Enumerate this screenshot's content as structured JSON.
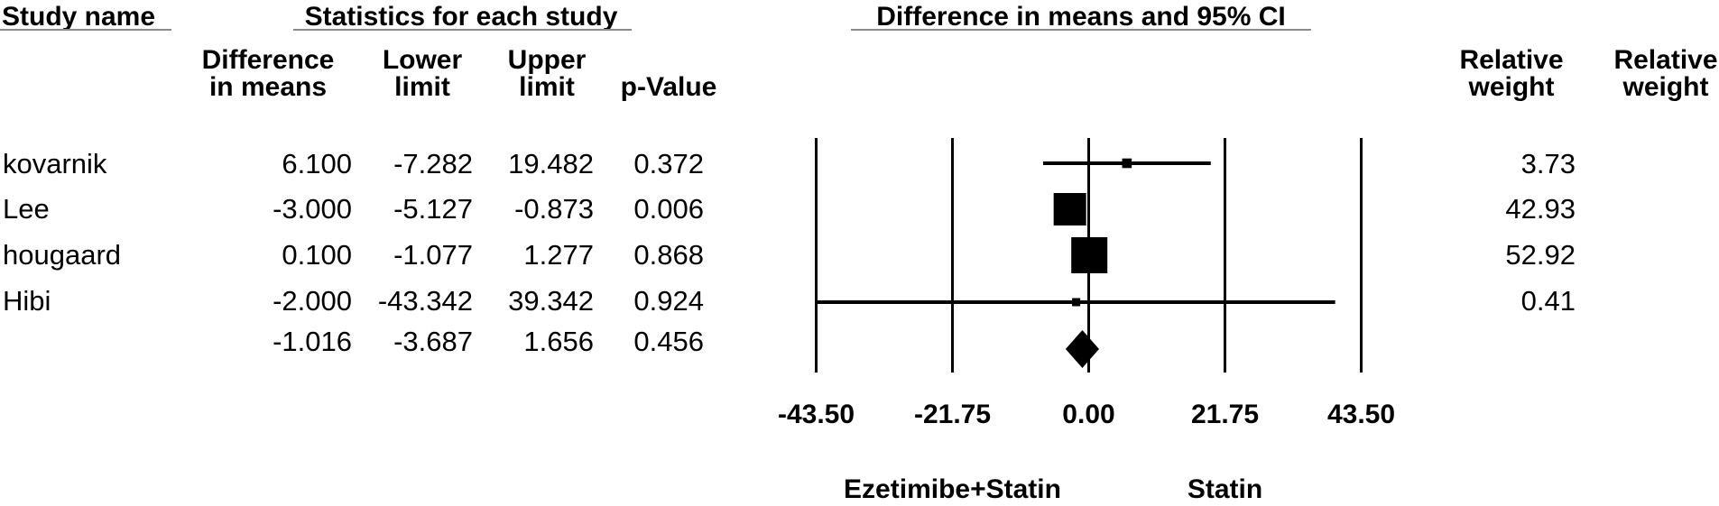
{
  "colors": {
    "ink": "#000000",
    "underline": "#8a8a8a",
    "background": "#ffffff"
  },
  "group_headers": {
    "study": "Study name",
    "stats": "Statistics for each study",
    "plot": "Difference in means and 95% CI"
  },
  "column_headers": {
    "diff": [
      "Difference",
      "in means"
    ],
    "lower": [
      "Lower",
      "limit"
    ],
    "upper": [
      "Upper",
      "limit"
    ],
    "p": [
      "p-Value"
    ],
    "weight1": [
      "Relative",
      "weight"
    ],
    "weight2": [
      "Relative",
      "weight"
    ]
  },
  "chart_data": {
    "type": "forest",
    "title": "Difference in means and 95% CI",
    "xlabel": "",
    "xlim": [
      -43.5,
      43.5
    ],
    "x_ticks": [
      -43.5,
      -21.75,
      0,
      21.75,
      43.5
    ],
    "x_tick_labels": [
      "-43.50",
      "-21.75",
      "0.00",
      "21.75",
      "43.50"
    ],
    "grid": "vertical-lines-at-ticks",
    "footer_labels": [
      {
        "text": "Ezetimibe+Statin",
        "x": -21.75
      },
      {
        "text": "Statin",
        "x": 21.75
      }
    ],
    "studies": [
      {
        "name": "kovarnik",
        "diff": 6.1,
        "lower": -7.282,
        "upper": 19.482,
        "p": 0.372,
        "weight": 3.73,
        "display": {
          "diff": "6.100",
          "lower": "-7.282",
          "upper": "19.482",
          "p": "0.372",
          "weight": "3.73"
        }
      },
      {
        "name": "Lee",
        "diff": -3.0,
        "lower": -5.127,
        "upper": -0.873,
        "p": 0.006,
        "weight": 42.93,
        "display": {
          "diff": "-3.000",
          "lower": "-5.127",
          "upper": "-0.873",
          "p": "0.006",
          "weight": "42.93"
        }
      },
      {
        "name": "hougaard",
        "diff": 0.1,
        "lower": -1.077,
        "upper": 1.277,
        "p": 0.868,
        "weight": 52.92,
        "display": {
          "diff": "0.100",
          "lower": "-1.077",
          "upper": "1.277",
          "p": "0.868",
          "weight": "52.92"
        }
      },
      {
        "name": "Hibi",
        "diff": -2.0,
        "lower": -43.342,
        "upper": 39.342,
        "p": 0.924,
        "weight": 0.41,
        "display": {
          "diff": "-2.000",
          "lower": "-43.342",
          "upper": "39.342",
          "p": "0.924",
          "weight": "0.41"
        }
      }
    ],
    "overall": {
      "diff": -1.016,
      "lower": -3.687,
      "upper": 1.656,
      "p": 0.456,
      "display": {
        "diff": "-1.016",
        "lower": "-3.687",
        "upper": "1.656",
        "p": "0.456"
      }
    }
  }
}
